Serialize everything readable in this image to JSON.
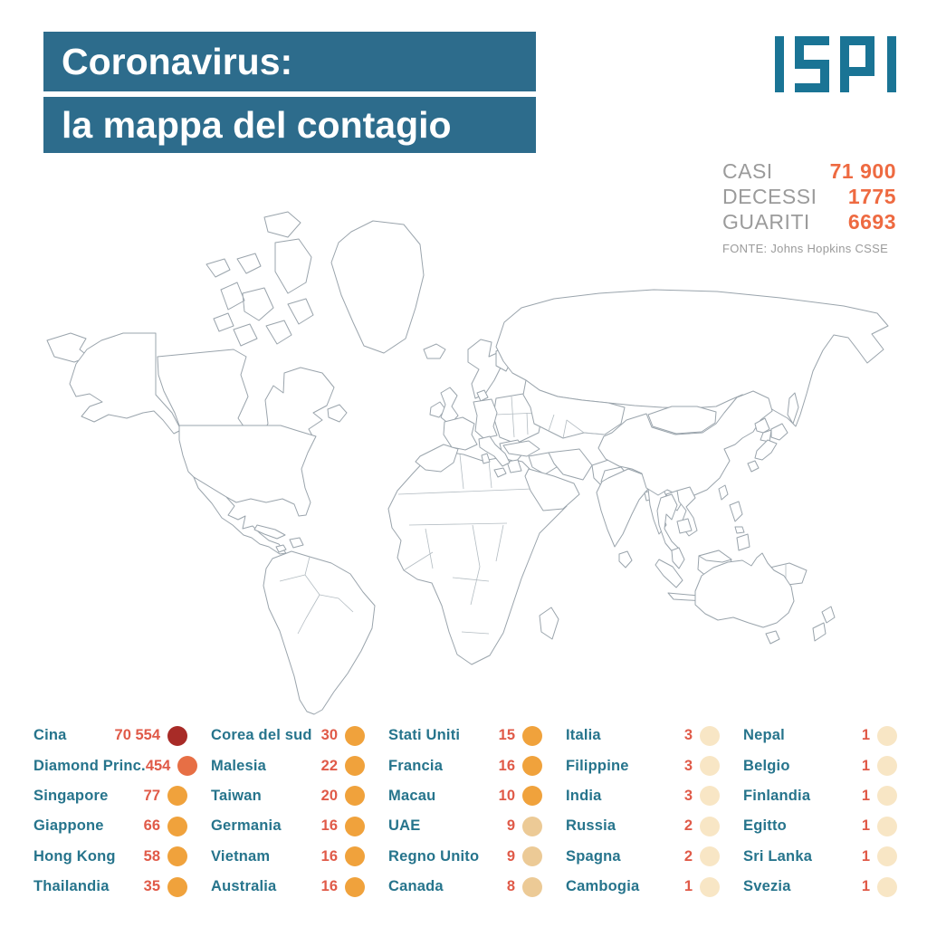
{
  "title": {
    "line1": "Coronavirus:",
    "line2": "la mappa del contagio"
  },
  "logo": {
    "text": "ISPI"
  },
  "stats": {
    "items": [
      {
        "label": "CASI",
        "value": "71 900"
      },
      {
        "label": "DECESSI",
        "value": "1775"
      },
      {
        "label": "GUARITI",
        "value": "6693"
      }
    ],
    "source": "FONTE: Johns Hopkins CSSE"
  },
  "colors": {
    "title_box": "#2d6c8c",
    "logo_teal": "#1a7495",
    "stat_label_gray": "#9b9b9b",
    "stat_value_orange": "#ee6a41",
    "legend_name_teal": "#26748c",
    "legend_value_red": "#e05a48",
    "tiers": {
      "t1": "#a82b27",
      "t2": "#e76f45",
      "t3": "#f0a23c",
      "t4": "#ecca96",
      "t5": "#f8e6c5"
    },
    "map": {
      "china": "#8c2033",
      "orange": "#f3a440",
      "canada": "#f9dcae",
      "russia": "#f8e9d4",
      "india": "#f7e3c2",
      "italy": "#f7e0bc",
      "uk": "#f4d5a1",
      "white": "#ffffff"
    }
  },
  "legend": {
    "columns": [
      [
        {
          "name": "Cina",
          "value": "70 554",
          "tier": "t1"
        },
        {
          "name": "Diamond Princ.",
          "value": "454",
          "tier": "t2"
        },
        {
          "name": "Singapore",
          "value": "77",
          "tier": "t3"
        },
        {
          "name": "Giappone",
          "value": "66",
          "tier": "t3"
        },
        {
          "name": "Hong Kong",
          "value": "58",
          "tier": "t3"
        },
        {
          "name": "Thailandia",
          "value": "35",
          "tier": "t3"
        }
      ],
      [
        {
          "name": "Corea del sud",
          "value": "30",
          "tier": "t3"
        },
        {
          "name": "Malesia",
          "value": "22",
          "tier": "t3"
        },
        {
          "name": "Taiwan",
          "value": "20",
          "tier": "t3"
        },
        {
          "name": "Germania",
          "value": "16",
          "tier": "t3"
        },
        {
          "name": "Vietnam",
          "value": "16",
          "tier": "t3"
        },
        {
          "name": "Australia",
          "value": "16",
          "tier": "t3"
        }
      ],
      [
        {
          "name": "Stati Uniti",
          "value": "15",
          "tier": "t3"
        },
        {
          "name": "Francia",
          "value": "16",
          "tier": "t3"
        },
        {
          "name": "Macau",
          "value": "10",
          "tier": "t3"
        },
        {
          "name": "UAE",
          "value": "9",
          "tier": "t4"
        },
        {
          "name": "Regno Unito",
          "value": "9",
          "tier": "t4"
        },
        {
          "name": "Canada",
          "value": "8",
          "tier": "t4"
        }
      ],
      [
        {
          "name": "Italia",
          "value": "3",
          "tier": "t5"
        },
        {
          "name": "Filippine",
          "value": "3",
          "tier": "t5"
        },
        {
          "name": "India",
          "value": "3",
          "tier": "t5"
        },
        {
          "name": "Russia",
          "value": "2",
          "tier": "t5"
        },
        {
          "name": "Spagna",
          "value": "2",
          "tier": "t5"
        },
        {
          "name": "Cambogia",
          "value": "1",
          "tier": "t5"
        }
      ],
      [
        {
          "name": "Nepal",
          "value": "1",
          "tier": "t5"
        },
        {
          "name": "Belgio",
          "value": "1",
          "tier": "t5"
        },
        {
          "name": "Finlandia",
          "value": "1",
          "tier": "t5"
        },
        {
          "name": "Egitto",
          "value": "1",
          "tier": "t5"
        },
        {
          "name": "Sri Lanka",
          "value": "1",
          "tier": "t5"
        },
        {
          "name": "Svezia",
          "value": "1",
          "tier": "t5"
        }
      ]
    ]
  },
  "chart_data": {
    "type": "choropleth_map",
    "title": "Coronavirus: la mappa del contagio",
    "source": "FONTE: Johns Hopkins CSSE",
    "totals": {
      "casi": 71900,
      "decessi": 1775,
      "guariti": 6693
    },
    "entries": [
      {
        "name": "Cina",
        "value": 70554
      },
      {
        "name": "Diamond Princ.",
        "value": 454
      },
      {
        "name": "Singapore",
        "value": 77
      },
      {
        "name": "Giappone",
        "value": 66
      },
      {
        "name": "Hong Kong",
        "value": 58
      },
      {
        "name": "Thailandia",
        "value": 35
      },
      {
        "name": "Corea del sud",
        "value": 30
      },
      {
        "name": "Malesia",
        "value": 22
      },
      {
        "name": "Taiwan",
        "value": 20
      },
      {
        "name": "Germania",
        "value": 16
      },
      {
        "name": "Vietnam",
        "value": 16
      },
      {
        "name": "Australia",
        "value": 16
      },
      {
        "name": "Stati Uniti",
        "value": 15
      },
      {
        "name": "Francia",
        "value": 16
      },
      {
        "name": "Macau",
        "value": 10
      },
      {
        "name": "UAE",
        "value": 9
      },
      {
        "name": "Regno Unito",
        "value": 9
      },
      {
        "name": "Canada",
        "value": 8
      },
      {
        "name": "Italia",
        "value": 3
      },
      {
        "name": "Filippine",
        "value": 3
      },
      {
        "name": "India",
        "value": 3
      },
      {
        "name": "Russia",
        "value": 2
      },
      {
        "name": "Spagna",
        "value": 2
      },
      {
        "name": "Cambogia",
        "value": 1
      },
      {
        "name": "Nepal",
        "value": 1
      },
      {
        "name": "Belgio",
        "value": 1
      },
      {
        "name": "Finlandia",
        "value": 1
      },
      {
        "name": "Egitto",
        "value": 1
      },
      {
        "name": "Sri Lanka",
        "value": 1
      },
      {
        "name": "Svezia",
        "value": 1
      }
    ]
  }
}
